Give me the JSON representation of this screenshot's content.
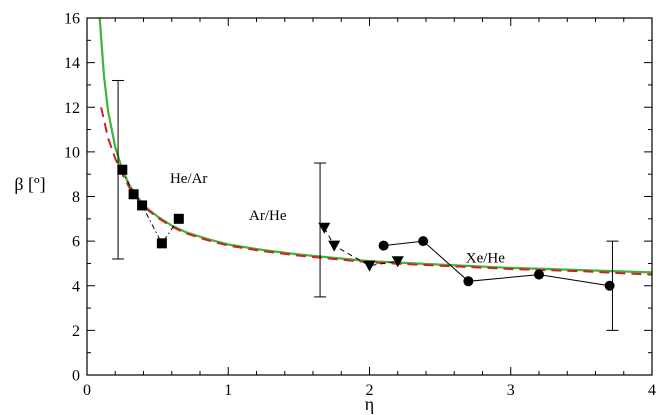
{
  "chart_data": {
    "type": "line",
    "xlabel": "η",
    "ylabel": "β [º]",
    "xlim": [
      0,
      4
    ],
    "ylim": [
      0,
      16
    ],
    "xticks": [
      "0",
      "1",
      "2",
      "3",
      "4"
    ],
    "yticks": [
      "0",
      "2",
      "4",
      "6",
      "8",
      "10",
      "12",
      "14",
      "16"
    ],
    "grid": false,
    "colors": {
      "axes": "#000000",
      "green_curve": "#3cb53c",
      "red_curve": "#cc2222",
      "markers": "#000000"
    },
    "curves": [
      {
        "style": "solid",
        "color": "#3cb53c",
        "x": [
          0.09,
          0.12,
          0.15,
          0.2,
          0.25,
          0.3,
          0.4,
          0.5,
          0.6,
          0.7,
          0.85,
          1.0,
          1.25,
          1.5,
          1.75,
          2.0,
          2.5,
          3.0,
          3.5,
          4.0
        ],
        "y": [
          16.0,
          13.4,
          11.8,
          10.2,
          9.2,
          8.5,
          7.6,
          7.1,
          6.7,
          6.4,
          6.1,
          5.85,
          5.6,
          5.4,
          5.25,
          5.1,
          4.95,
          4.8,
          4.7,
          4.6
        ]
      },
      {
        "style": "dashed",
        "color": "#cc2222",
        "x": [
          0.1,
          0.15,
          0.2,
          0.25,
          0.3,
          0.4,
          0.5,
          0.6,
          0.7,
          0.85,
          1.0,
          1.25,
          1.5,
          1.75,
          2.0,
          2.5,
          3.0,
          3.5,
          4.0
        ],
        "y": [
          12.0,
          10.6,
          9.7,
          9.0,
          8.4,
          7.55,
          7.05,
          6.65,
          6.35,
          6.05,
          5.8,
          5.55,
          5.35,
          5.2,
          5.05,
          4.9,
          4.75,
          4.65,
          4.5
        ]
      }
    ],
    "series": [
      {
        "name": "He/Ar",
        "marker": "square",
        "line": "dash-dot",
        "x": [
          0.25,
          0.33,
          0.39,
          0.53,
          0.65
        ],
        "y": [
          9.2,
          8.1,
          7.6,
          5.9,
          7.0
        ]
      },
      {
        "name": "Ar/He",
        "marker": "triangle-down",
        "line": "dashed",
        "x": [
          1.68,
          1.75,
          2.0,
          2.2
        ],
        "y": [
          6.6,
          5.8,
          4.9,
          5.1
        ]
      },
      {
        "name": "Xe/He",
        "marker": "circle",
        "line": "solid",
        "x": [
          2.1,
          2.38,
          2.7,
          3.2,
          3.7
        ],
        "y": [
          5.8,
          6.0,
          4.2,
          4.5,
          4.0
        ]
      }
    ],
    "error_bars": [
      {
        "x": 0.22,
        "low": 5.2,
        "high": 13.2
      },
      {
        "x": 1.65,
        "low": 3.5,
        "high": 9.5
      },
      {
        "x": 3.72,
        "low": 2.0,
        "high": 6.0
      }
    ],
    "annotations": [
      {
        "text": "He/Ar",
        "x": 0.72,
        "y": 8.6
      },
      {
        "text": "Ar/He",
        "x": 1.28,
        "y": 6.95
      },
      {
        "text": "Xe/He",
        "x": 2.82,
        "y": 5.05
      }
    ]
  }
}
